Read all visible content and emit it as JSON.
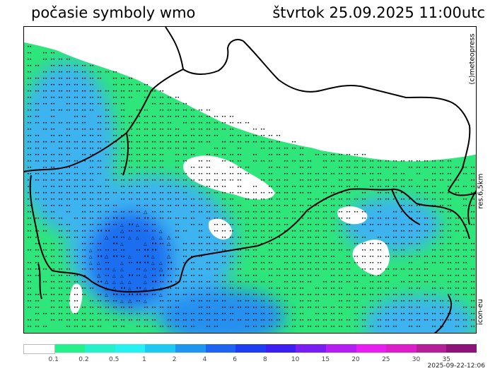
{
  "header": {
    "title": "počasie symboly wmo",
    "datetime": "štvrtok 25.09.2025 11:00utc"
  },
  "side_labels": {
    "copyright": "(c)meteopress",
    "resolution": "res.6,5km",
    "model": "icon-eu"
  },
  "legend": {
    "labels": [
      "0.1",
      "0.2",
      "0.5",
      "1",
      "2",
      "4",
      "6",
      "8",
      "10",
      "15",
      "20",
      "25",
      "30",
      "35"
    ],
    "colors": [
      "#ffffff",
      "#26f08a",
      "#26f0c8",
      "#26f0f0",
      "#1ec8f0",
      "#1e96f0",
      "#1e64f0",
      "#1e3cf0",
      "#3c1ef0",
      "#781ef0",
      "#b41ef0",
      "#e61ef0",
      "#dc1ec8",
      "#b41e96",
      "#8c1478"
    ]
  },
  "run_time": "2025-09-22-12:06",
  "map": {
    "colors": {
      "green": "#2ee67a",
      "blue_light": "#3cb4f0",
      "blue": "#2890f0",
      "blue_dark": "#1e6ef0",
      "border": "#000000"
    },
    "symbols": {
      "drizzle": "••",
      "shower": "△"
    }
  }
}
